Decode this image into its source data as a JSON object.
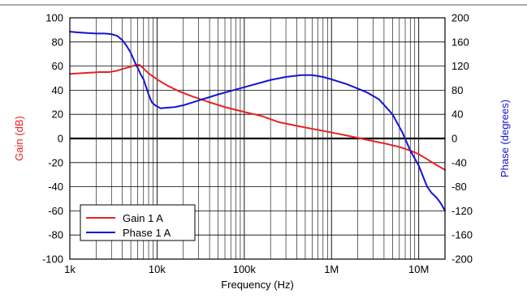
{
  "chart_data": {
    "type": "line",
    "title": "",
    "xlabel": "Frequency (Hz)",
    "ylabel_left": "Gain (dB)",
    "ylabel_right": "Phase (degrees)",
    "x_scale": "log",
    "xlim": [
      1000,
      20000000
    ],
    "ylim_left": [
      -100,
      100
    ],
    "ylim_right": [
      -200,
      200
    ],
    "grid": true,
    "legend_position": "bottom-left",
    "x_ticks": [
      {
        "value": 1000,
        "label": "1k"
      },
      {
        "value": 10000,
        "label": "10k"
      },
      {
        "value": 100000,
        "label": "100k"
      },
      {
        "value": 1000000,
        "label": "1M"
      },
      {
        "value": 10000000,
        "label": "10M"
      }
    ],
    "y_ticks_left": [
      {
        "value": 100,
        "label": "100"
      },
      {
        "value": 80,
        "label": "80"
      },
      {
        "value": 60,
        "label": "60"
      },
      {
        "value": 40,
        "label": "40"
      },
      {
        "value": 20,
        "label": "20"
      },
      {
        "value": 0,
        "label": "0"
      },
      {
        "value": -20,
        "label": "-20"
      },
      {
        "value": -40,
        "label": "-40"
      },
      {
        "value": -60,
        "label": "-60"
      },
      {
        "value": -80,
        "label": "-80"
      },
      {
        "value": -100,
        "label": "-100"
      }
    ],
    "y_ticks_right": [
      {
        "value": 200,
        "label": "200"
      },
      {
        "value": 160,
        "label": "160"
      },
      {
        "value": 120,
        "label": "120"
      },
      {
        "value": 80,
        "label": "80"
      },
      {
        "value": 40,
        "label": "40"
      },
      {
        "value": 0,
        "label": "0"
      },
      {
        "value": -40,
        "label": "-40"
      },
      {
        "value": -80,
        "label": "-80"
      },
      {
        "value": -120,
        "label": "-120"
      },
      {
        "value": -160,
        "label": "-160"
      },
      {
        "value": -200,
        "label": "-200"
      }
    ],
    "series": [
      {
        "name": "Gain 1 A",
        "color": "#e8221e",
        "axis": "left",
        "points": [
          [
            1000,
            53.5
          ],
          [
            1300,
            54
          ],
          [
            1700,
            54.5
          ],
          [
            2200,
            55
          ],
          [
            2800,
            55
          ],
          [
            3400,
            56
          ],
          [
            4200,
            58
          ],
          [
            5000,
            59.5
          ],
          [
            5800,
            61
          ],
          [
            6300,
            61
          ],
          [
            7000,
            58
          ],
          [
            8000,
            54
          ],
          [
            10000,
            49
          ],
          [
            13000,
            44
          ],
          [
            18000,
            39
          ],
          [
            25000,
            35
          ],
          [
            40000,
            30
          ],
          [
            60000,
            26
          ],
          [
            100000,
            22
          ],
          [
            160000,
            18.5
          ],
          [
            250000,
            13.5
          ],
          [
            400000,
            10.5
          ],
          [
            600000,
            8
          ],
          [
            1000000,
            5
          ],
          [
            1600000,
            2
          ],
          [
            2500000,
            -1
          ],
          [
            4000000,
            -4
          ],
          [
            6000000,
            -7
          ],
          [
            8000000,
            -10
          ],
          [
            10000000,
            -13
          ],
          [
            13000000,
            -18
          ],
          [
            16000000,
            -22
          ],
          [
            20000000,
            -26
          ]
        ]
      },
      {
        "name": "Phase 1 A",
        "color": "#1414d2",
        "axis": "right",
        "points": [
          [
            1000,
            177
          ],
          [
            1200,
            176
          ],
          [
            1500,
            175
          ],
          [
            2000,
            174
          ],
          [
            2500,
            174
          ],
          [
            3000,
            173
          ],
          [
            3500,
            170
          ],
          [
            4000,
            163
          ],
          [
            4500,
            153
          ],
          [
            5000,
            142
          ],
          [
            5500,
            128
          ],
          [
            6000,
            117
          ],
          [
            6500,
            106
          ],
          [
            7000,
            98
          ],
          [
            7500,
            85
          ],
          [
            8000,
            73
          ],
          [
            8700,
            60
          ],
          [
            9500,
            55
          ],
          [
            11000,
            50
          ],
          [
            13000,
            51
          ],
          [
            16000,
            52
          ],
          [
            20000,
            55
          ],
          [
            30000,
            63
          ],
          [
            50000,
            73
          ],
          [
            100000,
            85
          ],
          [
            200000,
            97
          ],
          [
            300000,
            102
          ],
          [
            450000,
            105
          ],
          [
            600000,
            105
          ],
          [
            800000,
            102
          ],
          [
            1000000,
            98
          ],
          [
            1500000,
            90
          ],
          [
            2500000,
            77
          ],
          [
            3500000,
            65
          ],
          [
            5000000,
            40
          ],
          [
            6500000,
            10
          ],
          [
            8000000,
            -20
          ],
          [
            10000000,
            -45
          ],
          [
            11000000,
            -60
          ],
          [
            12500000,
            -80
          ],
          [
            14000000,
            -90
          ],
          [
            16000000,
            -98
          ],
          [
            18000000,
            -108
          ],
          [
            20000000,
            -120
          ]
        ]
      }
    ]
  }
}
